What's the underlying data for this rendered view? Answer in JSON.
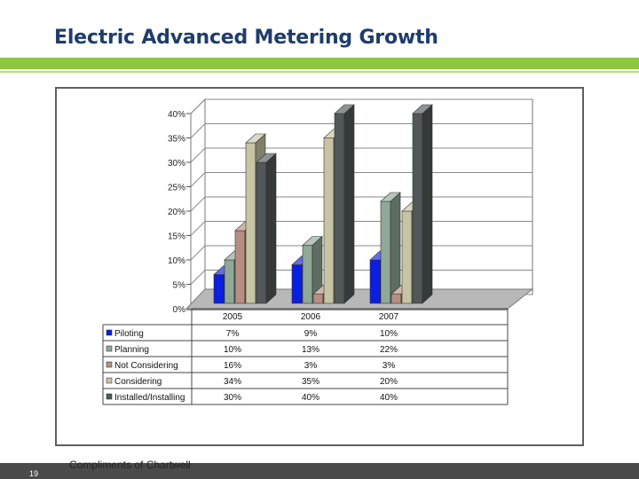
{
  "slide": {
    "title": "Electric Advanced Metering Growth",
    "page_number": "19",
    "credit": "Compliments of Chartwell"
  },
  "colors": {
    "title": "#1f3d6b",
    "accent_green": "#8dc63f",
    "footer": "#4a4a4a"
  },
  "chart_data": {
    "type": "bar",
    "style": "3d-clustered-with-data-table",
    "categories": [
      "2005",
      "2006",
      "2007"
    ],
    "series": [
      {
        "name": "Piloting",
        "values": [
          7,
          9,
          10
        ],
        "labels": [
          "7%",
          "9%",
          "10%"
        ],
        "color": "#0a1fe0"
      },
      {
        "name": "Planning",
        "values": [
          10,
          13,
          22
        ],
        "labels": [
          "10%",
          "13%",
          "22%"
        ],
        "color": "#8fa898"
      },
      {
        "name": "Not Considering",
        "values": [
          16,
          3,
          3
        ],
        "labels": [
          "16%",
          "3%",
          "3%"
        ],
        "color": "#b88e82"
      },
      {
        "name": "Considering",
        "values": [
          34,
          35,
          20
        ],
        "labels": [
          "34%",
          "35%",
          "20%"
        ],
        "color": "#c6c4a4"
      },
      {
        "name": "Installed/Installing",
        "values": [
          30,
          40,
          40
        ],
        "labels": [
          "30%",
          "40%",
          "40%"
        ],
        "color": "#525759"
      }
    ],
    "ylim": [
      0,
      40
    ],
    "y_ticks": [
      "0%",
      "5%",
      "10%",
      "15%",
      "20%",
      "25%",
      "30%",
      "35%",
      "40%"
    ],
    "legend": "data-table-bottom"
  }
}
